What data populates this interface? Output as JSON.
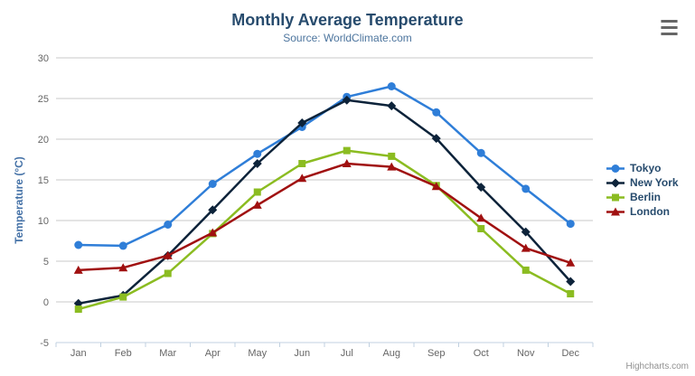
{
  "chart_data": {
    "type": "line",
    "title": "Monthly Average Temperature",
    "subtitle": "Source: WorldClimate.com",
    "categories": [
      "Jan",
      "Feb",
      "Mar",
      "Apr",
      "May",
      "Jun",
      "Jul",
      "Aug",
      "Sep",
      "Oct",
      "Nov",
      "Dec"
    ],
    "ylabel": "Temperature (°C)",
    "ylim": [
      -5,
      30
    ],
    "yticks": [
      -5,
      0,
      5,
      10,
      15,
      20,
      25,
      30
    ],
    "grid": true,
    "legend_position": "right",
    "series": [
      {
        "name": "Tokyo",
        "marker": "circle",
        "color": "#2f7ed8",
        "values": [
          7.0,
          6.9,
          9.5,
          14.5,
          18.2,
          21.5,
          25.2,
          26.5,
          23.3,
          18.3,
          13.9,
          9.6
        ]
      },
      {
        "name": "New York",
        "marker": "diamond",
        "color": "#0d233a",
        "values": [
          -0.2,
          0.8,
          5.7,
          11.3,
          17.0,
          22.0,
          24.8,
          24.1,
          20.1,
          14.1,
          8.6,
          2.5
        ]
      },
      {
        "name": "Berlin",
        "marker": "square",
        "color": "#8bbc21",
        "values": [
          -0.9,
          0.6,
          3.5,
          8.4,
          13.5,
          17.0,
          18.6,
          17.9,
          14.3,
          9.0,
          3.9,
          1.0
        ]
      },
      {
        "name": "London",
        "marker": "triangle",
        "color": "#a01010",
        "values": [
          3.9,
          4.2,
          5.7,
          8.5,
          11.9,
          15.2,
          17.0,
          16.6,
          14.2,
          10.3,
          6.6,
          4.8
        ]
      }
    ]
  },
  "credits": "Highcharts.com",
  "icons": {
    "menu": "hamburger-menu-icon"
  },
  "colors": {
    "title": "#274b6d",
    "subtitle": "#4d759e",
    "y_axis_title": "#4572a7",
    "axis_label": "#666666",
    "grid": "#c8c8c8",
    "axis_line": "#c0d0e0",
    "legend_text": "#274b6d",
    "credits": "#909090",
    "background": "#ffffff"
  }
}
